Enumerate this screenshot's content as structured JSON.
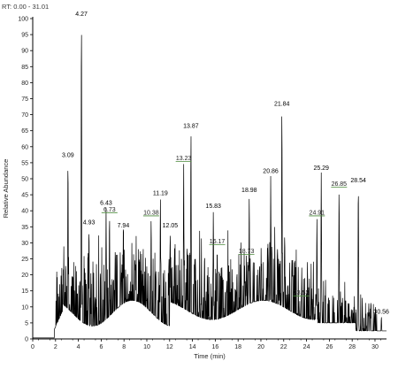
{
  "header": {
    "rt_range": "RT: 0.00 - 31.01"
  },
  "chart_data": {
    "type": "line",
    "title": "",
    "xlabel": "Time (min)",
    "ylabel": "Relative Abundance",
    "xlim": [
      0,
      31.01
    ],
    "ylim": [
      0,
      100
    ],
    "x_ticks": [
      0,
      2,
      4,
      6,
      8,
      10,
      12,
      14,
      16,
      18,
      20,
      22,
      24,
      26,
      28,
      30
    ],
    "y_ticks": [
      0,
      5,
      10,
      15,
      20,
      25,
      30,
      35,
      40,
      45,
      50,
      55,
      60,
      65,
      70,
      75,
      80,
      85,
      90,
      95,
      100
    ],
    "grid": false,
    "legend": "none",
    "colors": {
      "trace": "#000000",
      "peak_label": "#000000",
      "peak_label_alt": "#4a8a3a"
    },
    "peaks": [
      {
        "rt": 3.09,
        "label": "3.09",
        "y": 56
      },
      {
        "rt": 4.27,
        "label": "4.27",
        "y": 100
      },
      {
        "rt": 4.93,
        "label": "4.93",
        "y": 35
      },
      {
        "rt": 6.43,
        "label": "6.43",
        "y": 41
      },
      {
        "rt": 6.73,
        "label": "6.73",
        "y": 39,
        "color": "green"
      },
      {
        "rt": 7.94,
        "label": "7.94",
        "y": 34
      },
      {
        "rt": 10.38,
        "label": "10.38",
        "y": 38,
        "color": "green"
      },
      {
        "rt": 11.19,
        "label": "11.19",
        "y": 44
      },
      {
        "rt": 12.05,
        "label": "12.05",
        "y": 34
      },
      {
        "rt": 13.23,
        "label": "13.23",
        "y": 55,
        "color": "green"
      },
      {
        "rt": 13.87,
        "label": "13.87",
        "y": 65
      },
      {
        "rt": 15.83,
        "label": "15.83",
        "y": 40
      },
      {
        "rt": 16.17,
        "label": "16.17",
        "y": 29,
        "color": "green"
      },
      {
        "rt": 18.73,
        "label": "18.73",
        "y": 26,
        "color": "green"
      },
      {
        "rt": 18.98,
        "label": "18.98",
        "y": 45
      },
      {
        "rt": 20.86,
        "label": "20.86",
        "y": 51
      },
      {
        "rt": 21.84,
        "label": "21.84",
        "y": 72
      },
      {
        "rt": 23.53,
        "label": "23.53",
        "y": 13,
        "color": "green"
      },
      {
        "rt": 24.91,
        "label": "24.91",
        "y": 38,
        "color": "green"
      },
      {
        "rt": 25.29,
        "label": "25.29",
        "y": 52
      },
      {
        "rt": 26.85,
        "label": "26.85",
        "y": 47,
        "color": "green"
      },
      {
        "rt": 28.54,
        "label": "28.54",
        "y": 48
      },
      {
        "rt": 30.56,
        "label": "30.56",
        "y": 7
      }
    ]
  }
}
